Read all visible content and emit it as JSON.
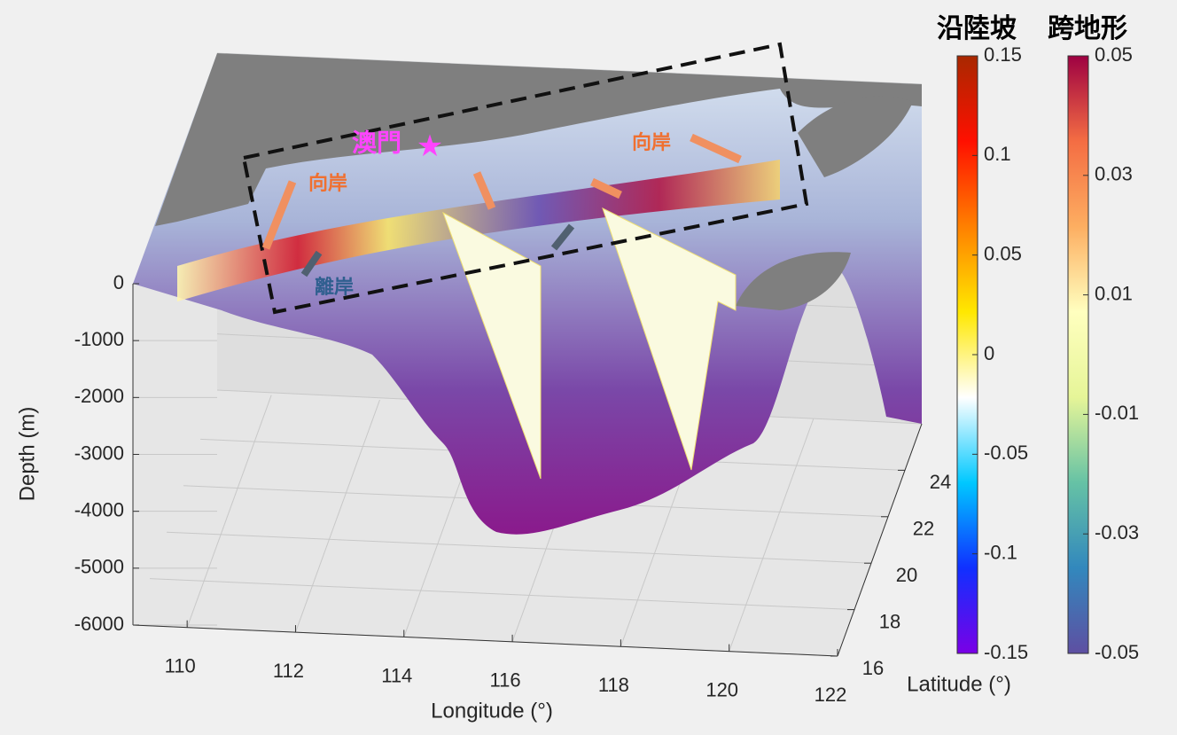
{
  "chart_data": {
    "type": "surface3d",
    "xlabel": "Longitude (°)",
    "ylabel": "Latitude (°)",
    "zlabel": "Depth (m)",
    "xlim": [
      109,
      122
    ],
    "xticks": [
      110,
      112,
      114,
      116,
      118,
      120,
      122
    ],
    "ylim": [
      16,
      26
    ],
    "yticks": [
      16,
      18,
      20,
      22,
      24
    ],
    "zlim": [
      -6000,
      0
    ],
    "zticks": [
      -6000,
      -5000,
      -4000,
      -3000,
      -2000,
      -1000,
      0
    ],
    "grid": true,
    "annotations": [
      "澳門",
      "向岸",
      "向岸",
      "離岸"
    ],
    "colorbars": [
      {
        "title": "沿陸坡",
        "clim": [
          -0.15,
          0.15
        ],
        "ticks": [
          -0.15,
          -0.1,
          -0.05,
          0,
          0.05,
          0.1,
          0.15
        ],
        "colors": [
          "#7a00e6",
          "#1030ff",
          "#00c8ff",
          "#ffffff",
          "#ffe800",
          "#ff8000",
          "#ff1000",
          "#a82800"
        ]
      },
      {
        "title": "跨地形",
        "clim": [
          -0.05,
          0.05
        ],
        "ticks": [
          -0.05,
          -0.03,
          -0.01,
          0.01,
          0.03,
          0.05
        ],
        "colors": [
          "#5e4fa2",
          "#3288bd",
          "#66c2a5",
          "#e6f598",
          "#ffffbf",
          "#fdae61",
          "#f46d43",
          "#9e0142"
        ]
      }
    ]
  }
}
